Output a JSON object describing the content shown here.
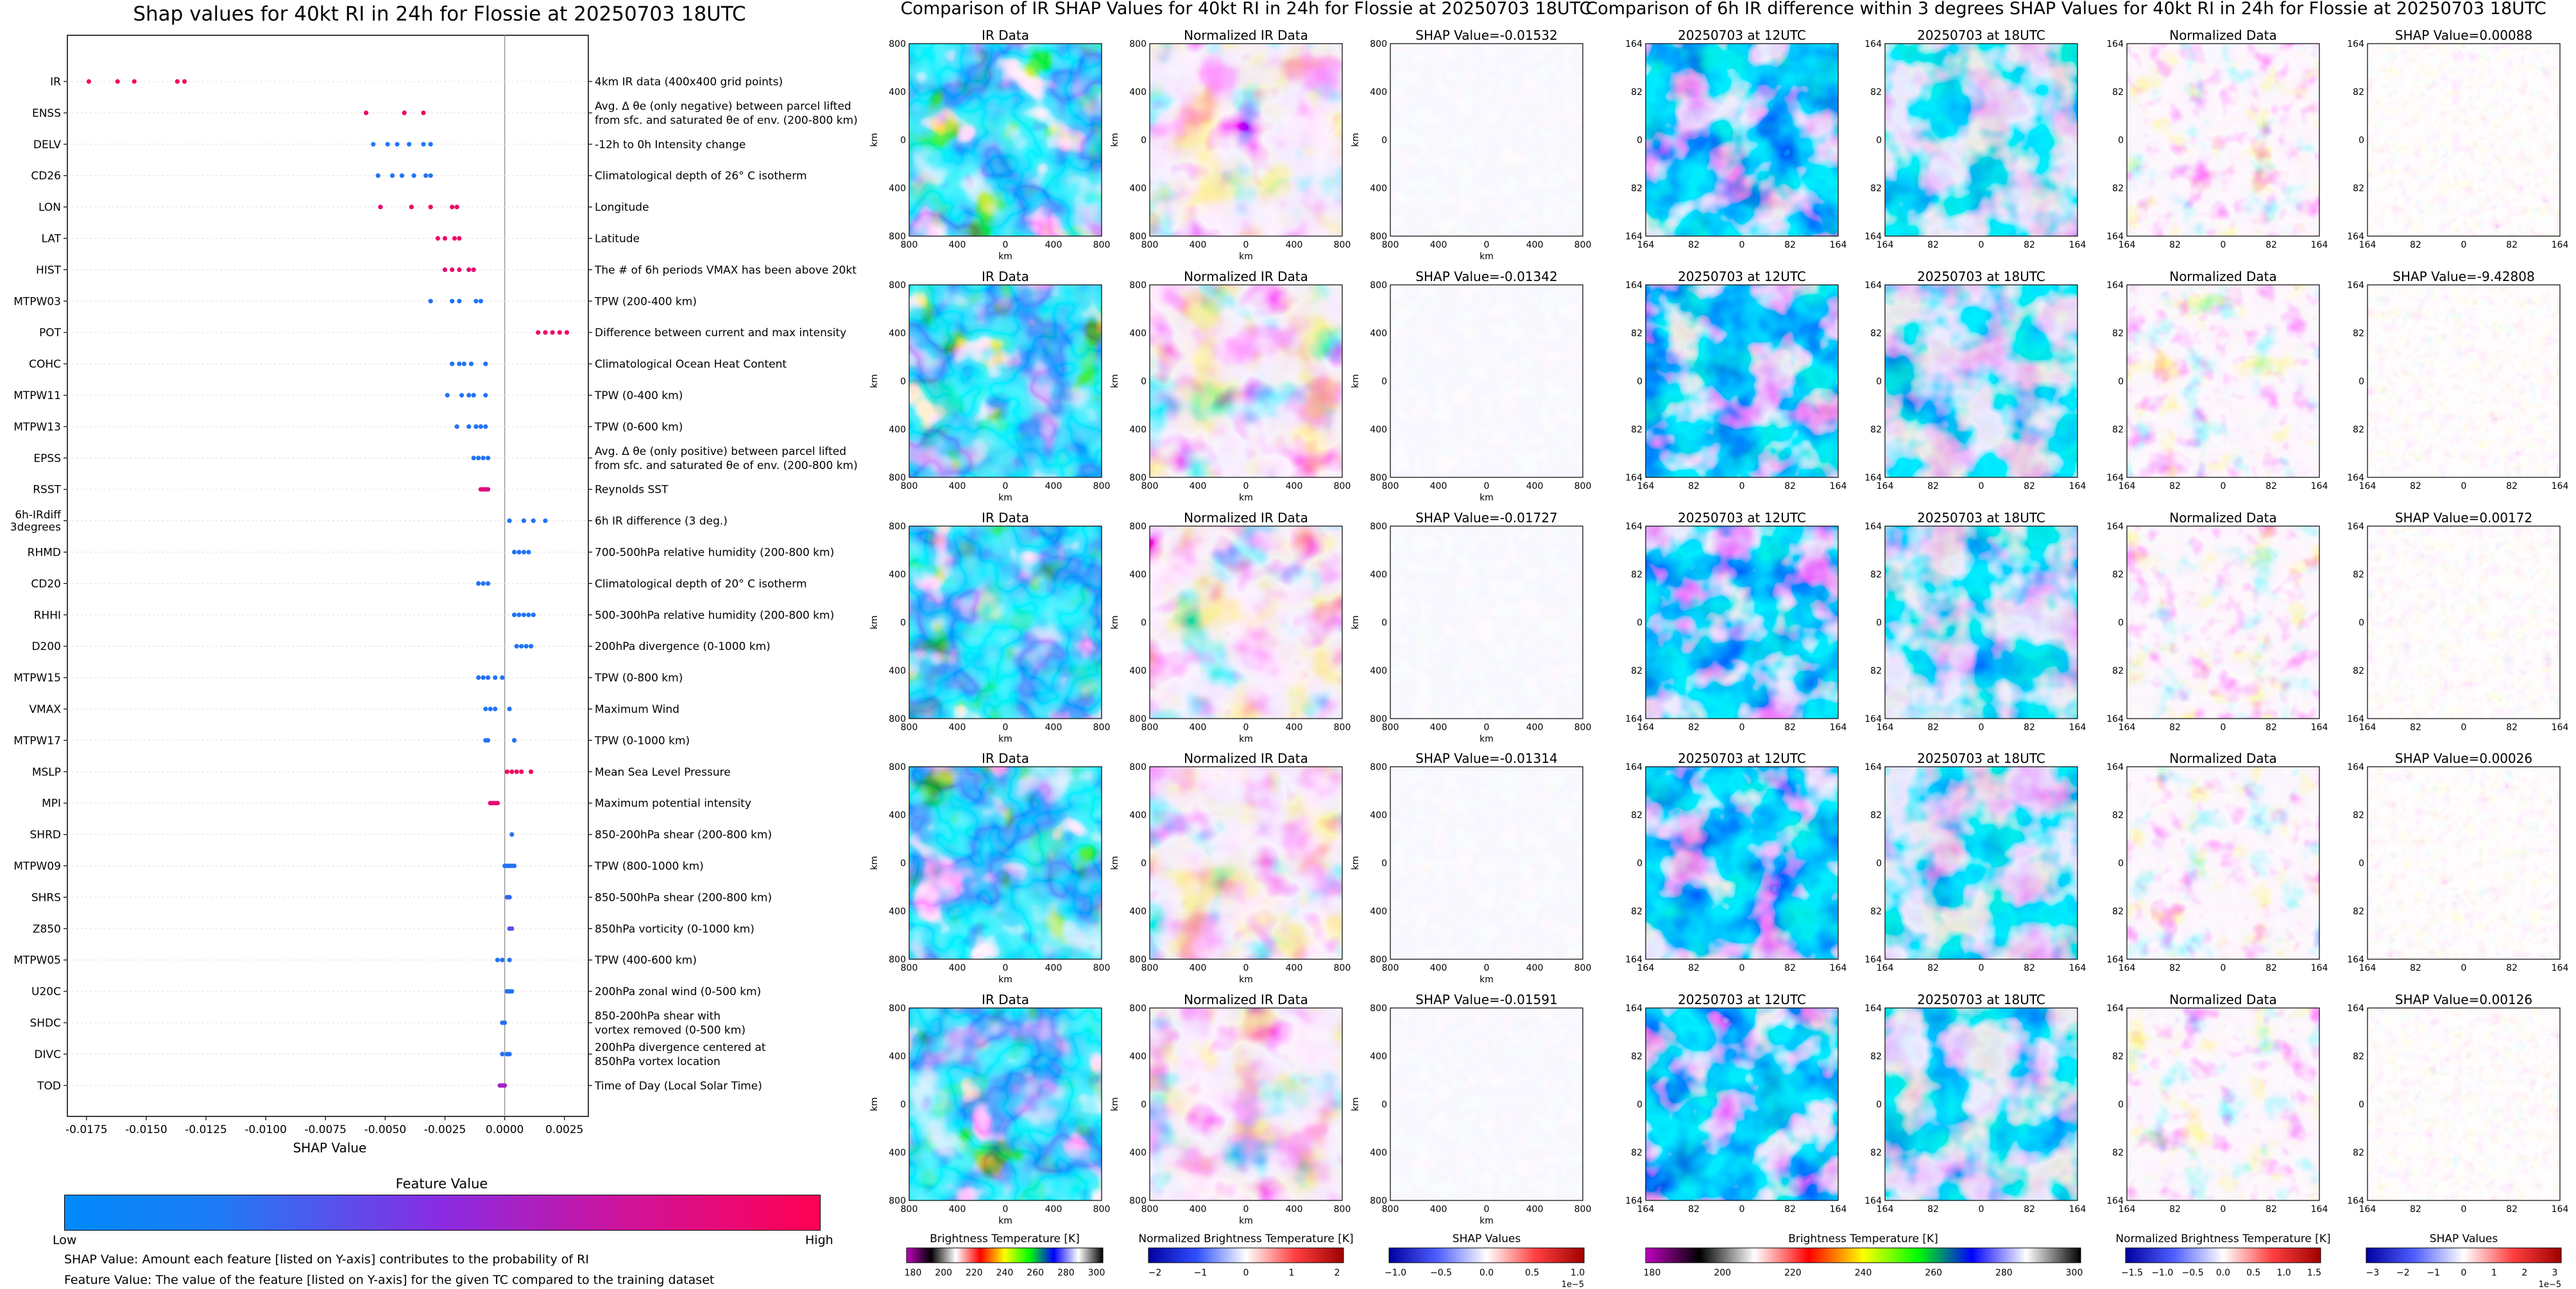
{
  "left_panel": {
    "title": "Shap values for 40kt RI in 24h for Flossie at 20250703 18UTC",
    "xlabel": "SHAP Value",
    "cbar_label": "Feature Value",
    "cbar_low": "Low",
    "cbar_high": "High",
    "note1": "SHAP Value: Amount each feature [listed on Y-axis] contributes to the probability of RI",
    "note2": "Feature Value: The value of the feature [listed on Y-axis] for the given TC compared to the training dataset",
    "colors": {
      "low": "#008afb",
      "mid": "#8a2be2",
      "high": "#ff0052"
    }
  },
  "chart_data": [
    {
      "type": "scatter",
      "title": "Shap values for 40kt RI in 24h for Flossie at 20250703 18UTC",
      "xlabel": "SHAP Value",
      "xlim": [
        -0.0183,
        0.0035
      ],
      "xticks": [
        "-0.0175",
        "-0.0150",
        "-0.0125",
        "-0.0100",
        "-0.0075",
        "-0.0050",
        "-0.0025",
        "0.0000",
        "0.0025"
      ],
      "xtick_values": [
        -0.0175,
        -0.015,
        -0.0125,
        -0.01,
        -0.0075,
        -0.005,
        -0.0025,
        0.0,
        0.0025
      ],
      "features": [
        {
          "name": "IR",
          "desc": [
            "4km IR data (400x400 grid points)"
          ],
          "fv": 0.95,
          "values": [
            -0.0174,
            -0.0162,
            -0.0155,
            -0.0137,
            -0.0134
          ]
        },
        {
          "name": "ENSS",
          "desc": [
            "Avg. Δ θe (only negative) between parcel lifted",
            "from sfc. and saturated θe of env. (200-800 km)"
          ],
          "fv": 0.92,
          "values": [
            -0.0058,
            -0.0042,
            -0.0034
          ]
        },
        {
          "name": "DELV",
          "desc": [
            "-12h to 0h Intensity change"
          ],
          "fv": 0.1,
          "values": [
            -0.0055,
            -0.0049,
            -0.0045,
            -0.004,
            -0.0034,
            -0.0031
          ]
        },
        {
          "name": "CD26",
          "desc": [
            "Climatological depth of 26° C isotherm"
          ],
          "fv": 0.12,
          "values": [
            -0.0053,
            -0.0047,
            -0.0043,
            -0.0038,
            -0.0033,
            -0.0031
          ]
        },
        {
          "name": "LON",
          "desc": [
            "Longitude"
          ],
          "fv": 0.92,
          "values": [
            -0.0052,
            -0.0039,
            -0.0031,
            -0.0022,
            -0.002
          ]
        },
        {
          "name": "LAT",
          "desc": [
            "Latitude"
          ],
          "fv": 0.93,
          "values": [
            -0.0028,
            -0.0025,
            -0.0021,
            -0.0019
          ]
        },
        {
          "name": "HIST",
          "desc": [
            "The # of 6h periods VMAX has been above 20kt"
          ],
          "fv": 0.9,
          "values": [
            -0.0025,
            -0.0022,
            -0.0019,
            -0.0015,
            -0.0013
          ]
        },
        {
          "name": "MTPW03",
          "desc": [
            "TPW (200-400 km)"
          ],
          "fv": 0.12,
          "values": [
            -0.0031,
            -0.0022,
            -0.0019,
            -0.0012,
            -0.001
          ]
        },
        {
          "name": "POT",
          "desc": [
            "Difference between current and max intensity"
          ],
          "fv": 0.93,
          "values": [
            0.0014,
            0.0017,
            0.002,
            0.0023,
            0.0026
          ]
        },
        {
          "name": "COHC",
          "desc": [
            "Climatological Ocean Heat Content"
          ],
          "fv": 0.12,
          "values": [
            -0.0022,
            -0.0019,
            -0.0017,
            -0.0014,
            -0.0008
          ]
        },
        {
          "name": "MTPW11",
          "desc": [
            "TPW (0-400 km)"
          ],
          "fv": 0.12,
          "values": [
            -0.0024,
            -0.0018,
            -0.0015,
            -0.0013,
            -0.0008
          ]
        },
        {
          "name": "MTPW13",
          "desc": [
            "TPW (0-600 km)"
          ],
          "fv": 0.12,
          "values": [
            -0.002,
            -0.0015,
            -0.0012,
            -0.001,
            -0.0008
          ]
        },
        {
          "name": "EPSS",
          "desc": [
            "Avg. Δ θe (only positive) between parcel lifted",
            "from sfc. and saturated θe of env. (200-800 km)"
          ],
          "fv": 0.12,
          "values": [
            -0.0013,
            -0.0011,
            -0.0009,
            -0.0007
          ]
        },
        {
          "name": "RSST",
          "desc": [
            "Reynolds SST"
          ],
          "fv": 0.85,
          "values": [
            -0.001,
            -0.0009,
            -0.0008,
            -0.0007
          ]
        },
        {
          "name": "6h-IRdiff\n3degrees",
          "desc": [
            "6h IR difference (3 deg.)"
          ],
          "fv": 0.12,
          "values": [
            0.0002,
            0.0008,
            0.0012,
            0.0017
          ]
        },
        {
          "name": "RHMD",
          "desc": [
            "700-500hPa relative humidity (200-800 km)"
          ],
          "fv": 0.12,
          "values": [
            0.0004,
            0.0006,
            0.0008,
            0.001
          ]
        },
        {
          "name": "CD20",
          "desc": [
            "Climatological depth of 20° C isotherm"
          ],
          "fv": 0.12,
          "values": [
            -0.0011,
            -0.0009,
            -0.0007
          ]
        },
        {
          "name": "RHHI",
          "desc": [
            "500-300hPa relative humidity (200-800 km)"
          ],
          "fv": 0.12,
          "values": [
            0.0004,
            0.0006,
            0.0008,
            0.001,
            0.0012
          ]
        },
        {
          "name": "D200",
          "desc": [
            "200hPa divergence (0-1000 km)"
          ],
          "fv": 0.12,
          "values": [
            0.0005,
            0.0007,
            0.0009,
            0.0011
          ]
        },
        {
          "name": "MTPW15",
          "desc": [
            "TPW (0-800 km)"
          ],
          "fv": 0.12,
          "values": [
            -0.0011,
            -0.0009,
            -0.0007,
            -0.0004,
            -0.0001
          ]
        },
        {
          "name": "VMAX",
          "desc": [
            "Maximum Wind"
          ],
          "fv": 0.12,
          "values": [
            -0.0008,
            -0.0006,
            -0.0004,
            0.0002
          ]
        },
        {
          "name": "MTPW17",
          "desc": [
            "TPW (0-1000 km)"
          ],
          "fv": 0.12,
          "values": [
            -0.0008,
            -0.0007,
            0.0004
          ]
        },
        {
          "name": "MSLP",
          "desc": [
            "Mean Sea Level Pressure"
          ],
          "fv": 0.95,
          "values": [
            0.0001,
            0.0003,
            0.0005,
            0.0007,
            0.0011
          ]
        },
        {
          "name": "MPI",
          "desc": [
            "Maximum potential intensity"
          ],
          "fv": 0.9,
          "values": [
            -0.0006,
            -0.0005,
            -0.0004,
            -0.0003
          ]
        },
        {
          "name": "SHRD",
          "desc": [
            "850-200hPa shear (200-800 km)"
          ],
          "fv": 0.12,
          "values": [
            0.0003
          ]
        },
        {
          "name": "MTPW09",
          "desc": [
            "TPW (800-1000 km)"
          ],
          "fv": 0.12,
          "values": [
            0.0,
            0.0001,
            0.0002,
            0.0003,
            0.0004
          ]
        },
        {
          "name": "SHRS",
          "desc": [
            "850-500hPa shear (200-800 km)"
          ],
          "fv": 0.2,
          "values": [
            0.0001,
            0.0002
          ]
        },
        {
          "name": "Z850",
          "desc": [
            "850hPa vorticity (0-1000 km)"
          ],
          "fv": 0.3,
          "values": [
            0.0002,
            0.0003
          ]
        },
        {
          "name": "MTPW05",
          "desc": [
            "TPW (400-600 km)"
          ],
          "fv": 0.12,
          "values": [
            -0.0003,
            -0.0001,
            0.0002
          ]
        },
        {
          "name": "U20C",
          "desc": [
            "200hPa zonal wind (0-500 km)"
          ],
          "fv": 0.12,
          "values": [
            0.0001,
            0.0002,
            0.0003
          ]
        },
        {
          "name": "SHDC",
          "desc": [
            "850-200hPa shear with",
            "vortex removed (0-500 km)"
          ],
          "fv": 0.15,
          "values": [
            -0.0001,
            0.0
          ]
        },
        {
          "name": "DIVC",
          "desc": [
            "200hPa divergence centered at",
            "850hPa vortex location"
          ],
          "fv": 0.12,
          "values": [
            -0.0001,
            0.0001,
            0.0002
          ]
        },
        {
          "name": "TOD",
          "desc": [
            "Time of Day (Local Solar Time)"
          ],
          "fv": 0.6,
          "values": [
            -0.0002,
            -0.0001,
            0.0
          ]
        }
      ]
    },
    {
      "type": "heatmap",
      "title": "Comparison of IR SHAP Values for 40kt RI in 24h for Flossie at 20250703 18UTC",
      "panel_titles": [
        "IR Data",
        "Normalized IR Data"
      ],
      "shap_titles": [
        "SHAP Value=-0.01532",
        "SHAP Value=-0.01342",
        "SHAP Value=-0.01727",
        "SHAP Value=-0.01314",
        "SHAP Value=-0.01591"
      ],
      "xlabel": "km",
      "ylabel": "km",
      "xticks": [
        "800",
        "400",
        "0",
        "400",
        "800"
      ],
      "yticks": [
        "800",
        "400",
        "0",
        "400",
        "800"
      ],
      "colorbars": [
        {
          "label": "Brightness Temperature [K]",
          "ticks": [
            "180",
            "200",
            "220",
            "240",
            "260",
            "280",
            "300"
          ]
        },
        {
          "label": "Normalized Brightness Temperature [K]",
          "ticks": [
            "−2",
            "−1",
            "0",
            "1",
            "2"
          ]
        },
        {
          "label": "SHAP Values",
          "ticks": [
            "−1.0",
            "−0.5",
            "0.0",
            "0.5",
            "1.0"
          ],
          "offset": "1e−5"
        }
      ]
    },
    {
      "type": "heatmap",
      "title": "Comparison of 6h IR difference within 3 degrees SHAP Values for 40kt RI in 24h for Flossie at 20250703 18UTC",
      "panel_titles": [
        "20250703 at 12UTC",
        "20250703 at 18UTC",
        "Normalized Data"
      ],
      "shap_titles": [
        "SHAP Value=0.00088",
        "SHAP Value=-9.42808",
        "SHAP Value=0.00172",
        "SHAP Value=0.00026",
        "SHAP Value=0.00126"
      ],
      "xticks": [
        "164",
        "82",
        "0",
        "82",
        "164"
      ],
      "yticks": [
        "164",
        "82",
        "0",
        "82",
        "164"
      ],
      "colorbars": [
        {
          "label": "Brightness Temperature [K]",
          "ticks": [
            "180",
            "200",
            "220",
            "240",
            "260",
            "280",
            "300"
          ]
        },
        {
          "label": "Normalized Brightness Temperature [K]",
          "ticks": [
            "−1.5",
            "−1.0",
            "−0.5",
            "0.0",
            "0.5",
            "1.0",
            "1.5"
          ]
        },
        {
          "label": "SHAP Values",
          "ticks": [
            "−3",
            "−2",
            "−1",
            "0",
            "1",
            "2",
            "3"
          ],
          "offset": "1e−5"
        }
      ]
    }
  ]
}
